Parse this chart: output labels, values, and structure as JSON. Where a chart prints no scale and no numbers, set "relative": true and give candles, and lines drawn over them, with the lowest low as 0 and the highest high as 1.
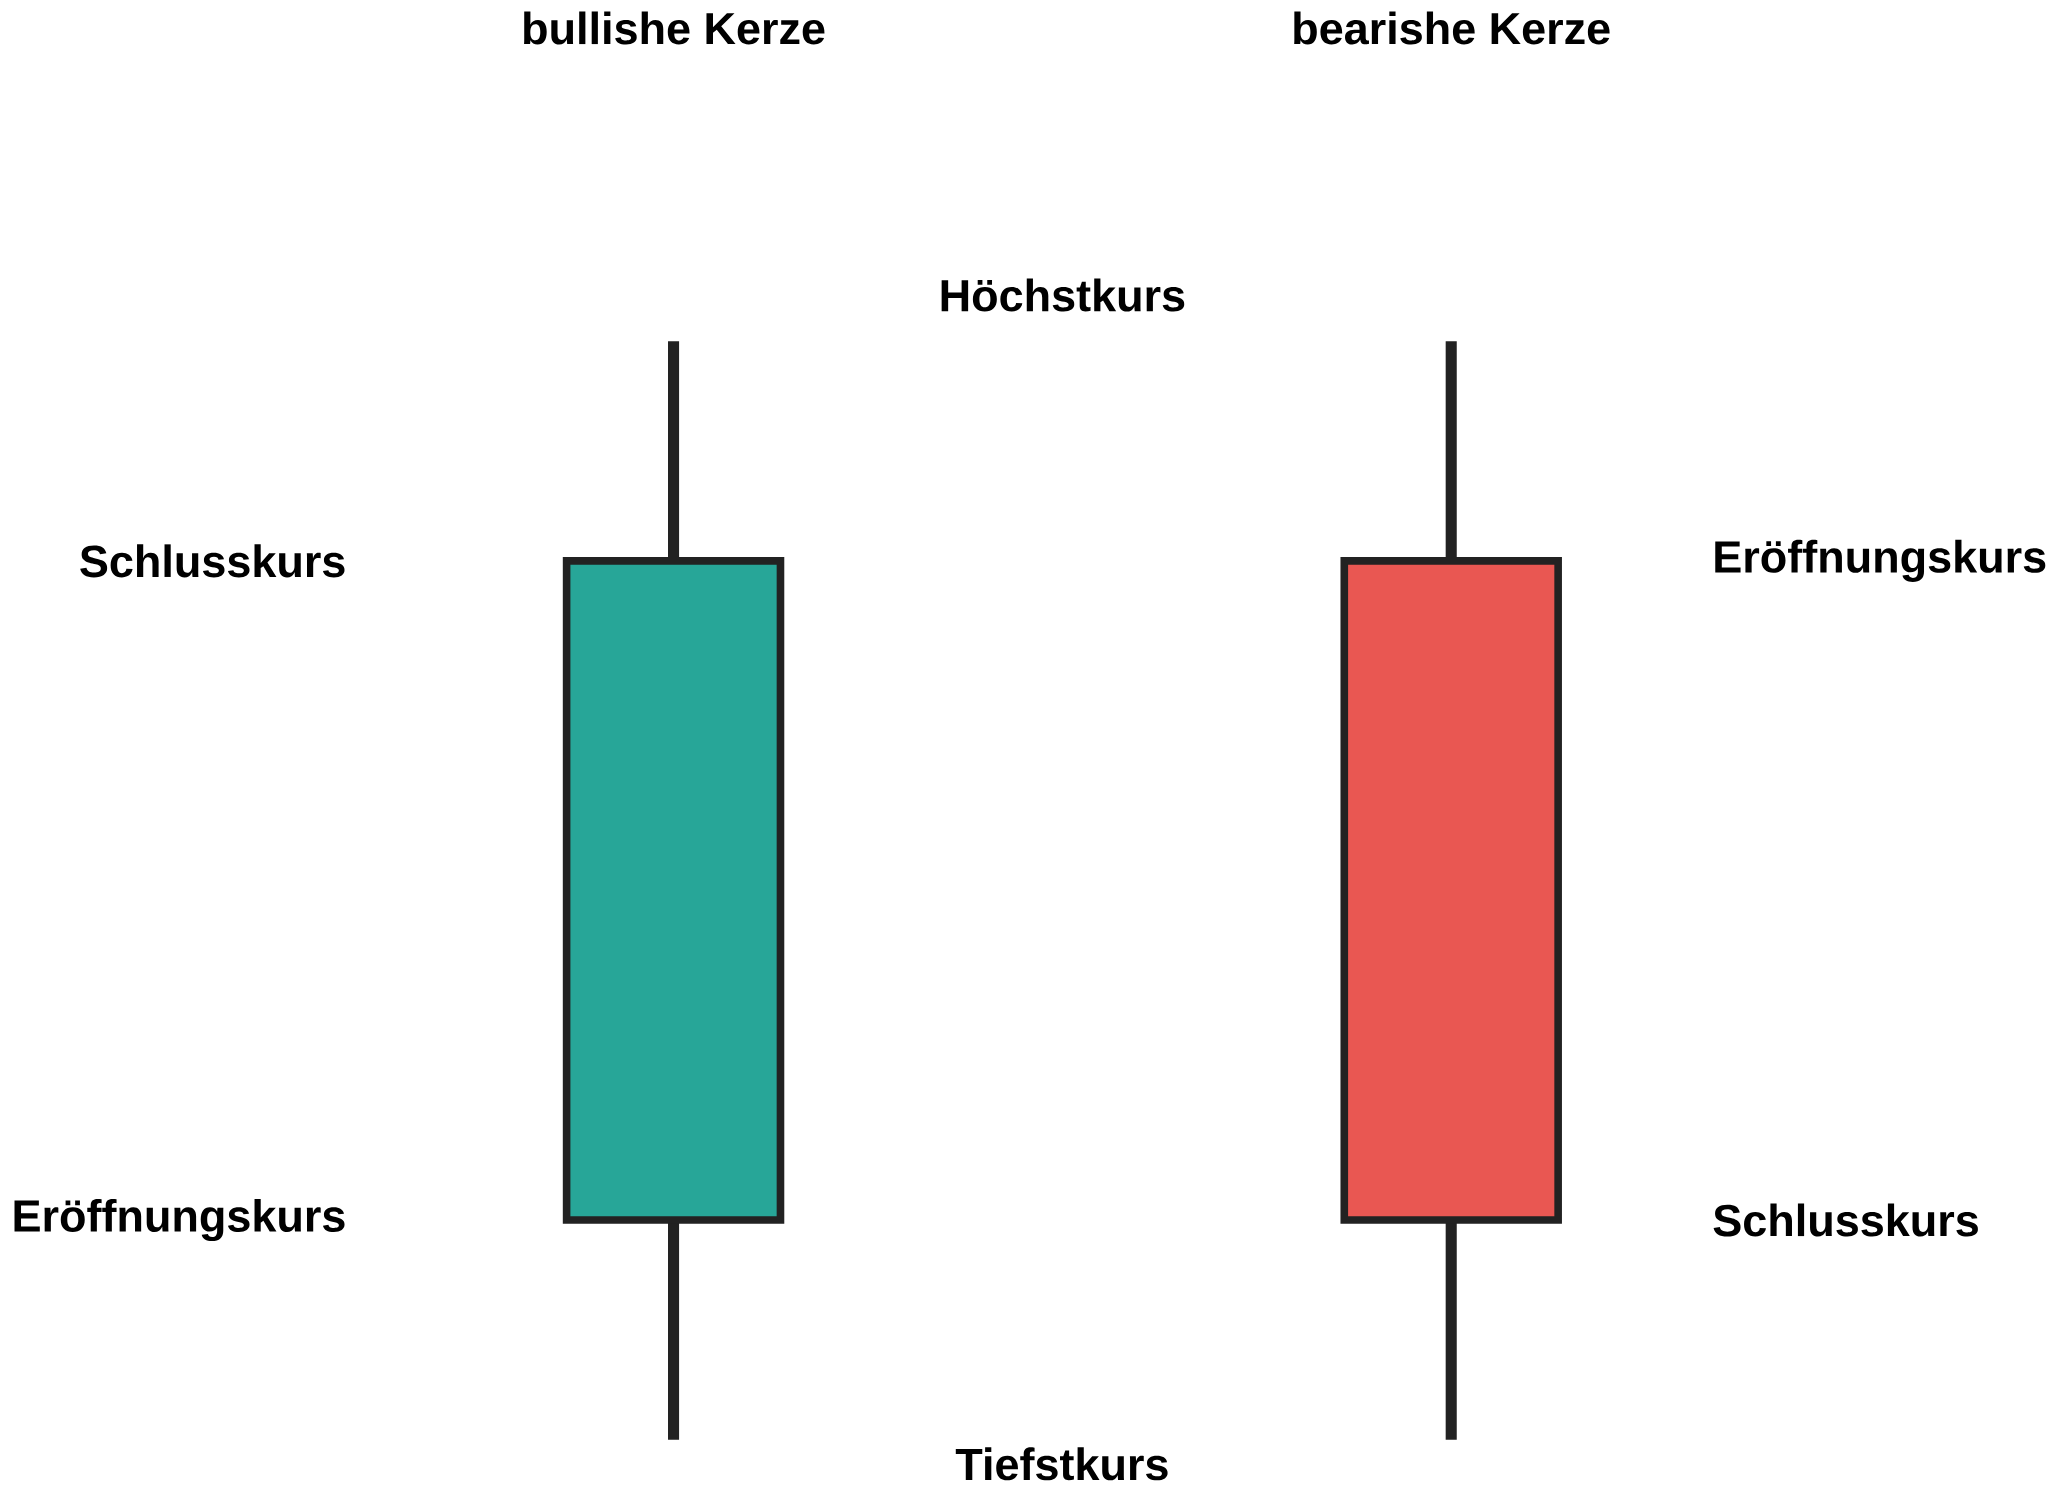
{
  "chart_data": {
    "type": "candlestick",
    "relative": true,
    "categories": [
      "bullishe Kerze",
      "bearishe Kerze"
    ],
    "ohlc": [
      [
        0.2,
        1,
        0,
        0.8
      ],
      [
        0.8,
        1,
        0,
        0.2
      ]
    ],
    "colors": [
      "#27a698",
      "#e95752"
    ],
    "annotations": [
      "Höchstkurs",
      "Schlusskurs",
      "Eröffnungskurs",
      "Eröffnungskurs",
      "Schlusskurs",
      "Tiefstkurs"
    ]
  }
}
